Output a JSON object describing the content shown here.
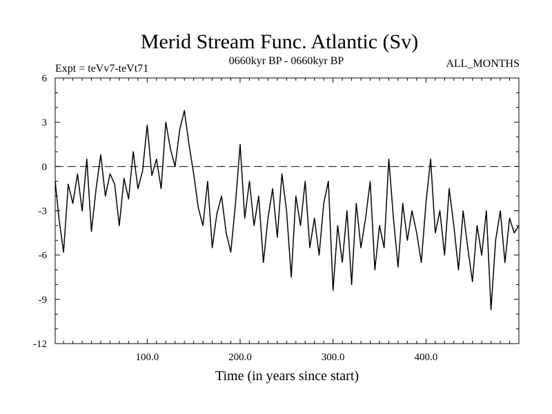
{
  "chart_data": {
    "type": "line",
    "title": "Merid Stream Func. Atlantic (Sv)",
    "experiment_label": "Expt = teVv7-teVt71",
    "period_label": "0660kyr BP - 0660kyr BP",
    "months_label": "ALL_MONTHS",
    "xlabel": "Time (in years since start)",
    "ylabel": "",
    "xlim": [
      1,
      500
    ],
    "ylim": [
      -12,
      6
    ],
    "x_ticks": [
      100,
      200,
      300,
      400
    ],
    "x_tick_labels": [
      "100.0",
      "200.0",
      "300.0",
      "400.0"
    ],
    "y_ticks": [
      -12,
      -9,
      -6,
      -3,
      0,
      3,
      6
    ],
    "y_tick_labels": [
      "-12",
      "-9",
      "-6",
      "-3",
      "0",
      "3",
      "6"
    ],
    "zero_line": "dashed",
    "grid": false,
    "series": [
      {
        "x": [
          1,
          5,
          10,
          15,
          20,
          25,
          30,
          35,
          40,
          45,
          50,
          55,
          60,
          65,
          70,
          75,
          80,
          85,
          90,
          95,
          100,
          105,
          110,
          115,
          120,
          125,
          130,
          135,
          140,
          145,
          150,
          155,
          160,
          165,
          170,
          175,
          180,
          185,
          190,
          195,
          200,
          205,
          210,
          215,
          220,
          225,
          230,
          235,
          240,
          245,
          250,
          255,
          260,
          265,
          270,
          275,
          280,
          285,
          290,
          295,
          300,
          305,
          310,
          315,
          320,
          325,
          330,
          335,
          340,
          345,
          350,
          355,
          360,
          365,
          370,
          375,
          380,
          385,
          390,
          395,
          400,
          405,
          410,
          415,
          420,
          425,
          430,
          435,
          440,
          445,
          450,
          455,
          460,
          465,
          470,
          475,
          480,
          485,
          490,
          495,
          500
        ],
        "values": [
          -1.0,
          -3.5,
          -5.8,
          -1.2,
          -2.5,
          -0.5,
          -3.0,
          0.5,
          -4.4,
          -1.5,
          0.8,
          -2.0,
          -0.5,
          -1.2,
          -4.0,
          -0.8,
          -2.2,
          1.0,
          -1.5,
          -0.3,
          2.8,
          -0.6,
          0.5,
          -1.5,
          3.0,
          1.2,
          0.0,
          2.5,
          3.8,
          1.5,
          -0.5,
          -2.8,
          -4.0,
          -1.0,
          -5.5,
          -3.2,
          -2.0,
          -4.5,
          -5.8,
          -2.5,
          1.5,
          -3.5,
          -1.0,
          -4.0,
          -2.0,
          -6.5,
          -3.5,
          -1.5,
          -4.8,
          -0.5,
          -3.0,
          -7.5,
          -2.0,
          -4.0,
          -1.0,
          -5.5,
          -3.5,
          -6.0,
          -2.5,
          -1.0,
          -8.4,
          -4.0,
          -6.5,
          -3.0,
          -8.0,
          -2.5,
          -5.5,
          -3.5,
          -1.0,
          -7.0,
          -4.0,
          -5.5,
          0.5,
          -3.5,
          -6.8,
          -2.5,
          -5.0,
          -3.0,
          -4.5,
          -6.5,
          -2.5,
          0.5,
          -4.5,
          -3.0,
          -6.0,
          -1.5,
          -4.0,
          -7.0,
          -3.0,
          -5.5,
          -7.8,
          -4.0,
          -6.0,
          -3.0,
          -9.7,
          -5.0,
          -3.0,
          -6.5,
          -3.5,
          -4.5,
          -4.0
        ]
      }
    ]
  }
}
